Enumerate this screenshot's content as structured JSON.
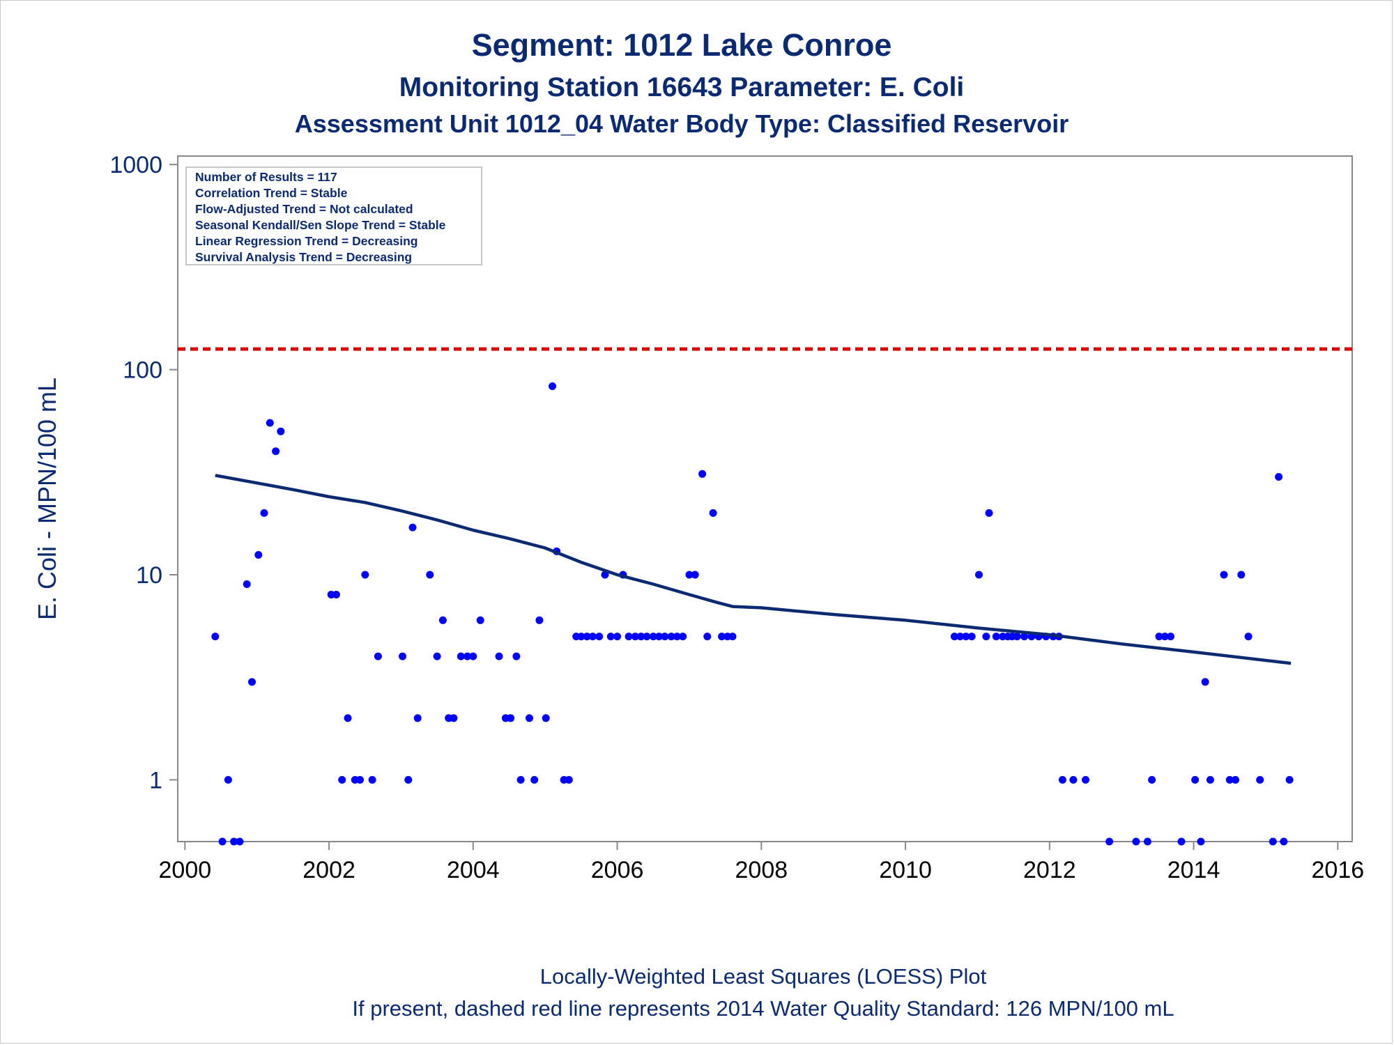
{
  "titles": {
    "line1": "Segment: 1012  Lake Conroe",
    "line2": "Monitoring Station 16643 Parameter: E. Coli",
    "line3": "Assessment Unit 1012_04   Water Body Type: Classified Reservoir"
  },
  "stats_box": [
    "Number of Results = 117",
    "Correlation Trend = Stable",
    "Flow-Adjusted Trend = Not calculated",
    "Seasonal Kendall/Sen Slope Trend = Stable",
    "Linear Regression Trend = Decreasing",
    "Survival Analysis Trend = Decreasing"
  ],
  "footer": {
    "line1": "Locally-Weighted Least Squares (LOESS) Plot",
    "line2": "If present, dashed red line represents 2014 Water Quality Standard: 126 MPN/100 mL"
  },
  "chart_data": {
    "type": "scatter",
    "ylabel": "E. Coli - MPN/100 mL",
    "xlabel": "",
    "y_scale": "log",
    "xlim": [
      1999.9,
      2016.2
    ],
    "ylim": [
      0.5,
      1100
    ],
    "x_ticks": [
      2000,
      2002,
      2004,
      2006,
      2008,
      2010,
      2012,
      2014,
      2016
    ],
    "y_ticks": [
      {
        "value": 1,
        "label": "1"
      },
      {
        "value": 10,
        "label": "10"
      },
      {
        "value": 100,
        "label": "100"
      },
      {
        "value": 1000,
        "label": "1000"
      }
    ],
    "grid": false,
    "colors": {
      "points": "#0000ff",
      "loess": "#0b2a72",
      "standard": "#e00000",
      "text": "#0b2a72",
      "axis": "#888888"
    },
    "standard_line": {
      "value": 126,
      "style": "dashed"
    },
    "points": [
      [
        2000.42,
        5
      ],
      [
        2000.52,
        0.5
      ],
      [
        2000.6,
        1
      ],
      [
        2000.68,
        0.5
      ],
      [
        2000.76,
        0.5
      ],
      [
        2000.86,
        9
      ],
      [
        2000.93,
        3
      ],
      [
        2001.02,
        12.5
      ],
      [
        2001.1,
        20
      ],
      [
        2001.18,
        55
      ],
      [
        2001.26,
        40
      ],
      [
        2001.33,
        50
      ],
      [
        2002.03,
        8
      ],
      [
        2002.1,
        8
      ],
      [
        2002.18,
        1
      ],
      [
        2002.26,
        2
      ],
      [
        2002.36,
        1
      ],
      [
        2002.43,
        1
      ],
      [
        2002.5,
        10
      ],
      [
        2002.6,
        1
      ],
      [
        2002.68,
        4
      ],
      [
        2003.02,
        4
      ],
      [
        2003.1,
        1
      ],
      [
        2003.16,
        17
      ],
      [
        2003.23,
        2
      ],
      [
        2003.4,
        10
      ],
      [
        2003.5,
        4
      ],
      [
        2003.58,
        6
      ],
      [
        2003.66,
        2
      ],
      [
        2003.73,
        2
      ],
      [
        2003.83,
        4
      ],
      [
        2003.92,
        4
      ],
      [
        2004.0,
        4
      ],
      [
        2004.1,
        6
      ],
      [
        2004.36,
        4
      ],
      [
        2004.45,
        2
      ],
      [
        2004.52,
        2
      ],
      [
        2004.6,
        4
      ],
      [
        2004.66,
        1
      ],
      [
        2004.78,
        2
      ],
      [
        2004.85,
        1
      ],
      [
        2004.92,
        6
      ],
      [
        2005.01,
        2
      ],
      [
        2005.1,
        83
      ],
      [
        2005.16,
        13
      ],
      [
        2005.26,
        1
      ],
      [
        2005.33,
        1
      ],
      [
        2005.43,
        5
      ],
      [
        2005.5,
        5
      ],
      [
        2005.58,
        5
      ],
      [
        2005.66,
        5
      ],
      [
        2005.75,
        5
      ],
      [
        2005.83,
        10
      ],
      [
        2005.91,
        5
      ],
      [
        2006.0,
        5
      ],
      [
        2006.08,
        10
      ],
      [
        2006.16,
        5
      ],
      [
        2006.25,
        5
      ],
      [
        2006.33,
        5
      ],
      [
        2006.41,
        5
      ],
      [
        2006.5,
        5
      ],
      [
        2006.58,
        5
      ],
      [
        2006.66,
        5
      ],
      [
        2006.75,
        5
      ],
      [
        2006.83,
        5
      ],
      [
        2006.91,
        5
      ],
      [
        2007.0,
        10
      ],
      [
        2007.08,
        10
      ],
      [
        2007.18,
        31
      ],
      [
        2007.25,
        5
      ],
      [
        2007.33,
        20
      ],
      [
        2007.45,
        5
      ],
      [
        2007.53,
        5
      ],
      [
        2007.6,
        5
      ],
      [
        2010.68,
        5
      ],
      [
        2010.76,
        5
      ],
      [
        2010.84,
        5
      ],
      [
        2010.92,
        5
      ],
      [
        2011.02,
        10
      ],
      [
        2011.12,
        5
      ],
      [
        2011.16,
        20
      ],
      [
        2011.26,
        5
      ],
      [
        2011.35,
        5
      ],
      [
        2011.42,
        5
      ],
      [
        2011.48,
        5
      ],
      [
        2011.55,
        5
      ],
      [
        2011.65,
        5
      ],
      [
        2011.75,
        5
      ],
      [
        2011.85,
        5
      ],
      [
        2011.95,
        5
      ],
      [
        2012.05,
        5
      ],
      [
        2012.13,
        5
      ],
      [
        2012.18,
        1
      ],
      [
        2012.33,
        1
      ],
      [
        2012.5,
        1
      ],
      [
        2012.83,
        0.5
      ],
      [
        2013.2,
        0.5
      ],
      [
        2013.36,
        0.5
      ],
      [
        2013.42,
        1
      ],
      [
        2013.52,
        5
      ],
      [
        2013.6,
        5
      ],
      [
        2013.68,
        5
      ],
      [
        2013.83,
        0.5
      ],
      [
        2014.02,
        1
      ],
      [
        2014.1,
        0.5
      ],
      [
        2014.16,
        3
      ],
      [
        2014.23,
        1
      ],
      [
        2014.42,
        10
      ],
      [
        2014.5,
        1
      ],
      [
        2014.58,
        1
      ],
      [
        2014.66,
        10
      ],
      [
        2014.76,
        5
      ],
      [
        2014.92,
        1
      ],
      [
        2015.1,
        0.5
      ],
      [
        2015.18,
        30
      ],
      [
        2015.25,
        0.5
      ],
      [
        2015.33,
        1
      ]
    ],
    "loess": [
      [
        2000.42,
        30.5
      ],
      [
        2001.0,
        28
      ],
      [
        2001.5,
        26
      ],
      [
        2002.0,
        24
      ],
      [
        2002.5,
        22.5
      ],
      [
        2003.0,
        20.5
      ],
      [
        2003.5,
        18.5
      ],
      [
        2004.0,
        16.5
      ],
      [
        2004.5,
        15
      ],
      [
        2005.0,
        13.5
      ],
      [
        2005.5,
        11.5
      ],
      [
        2006.0,
        10
      ],
      [
        2006.5,
        9
      ],
      [
        2007.0,
        8
      ],
      [
        2007.4,
        7.3
      ],
      [
        2007.6,
        7
      ],
      [
        2008.0,
        6.9
      ],
      [
        2009.0,
        6.4
      ],
      [
        2010.0,
        6
      ],
      [
        2011.0,
        5.5
      ],
      [
        2012.0,
        5.1
      ],
      [
        2013.0,
        4.6
      ],
      [
        2014.0,
        4.2
      ],
      [
        2015.35,
        3.7
      ]
    ]
  }
}
